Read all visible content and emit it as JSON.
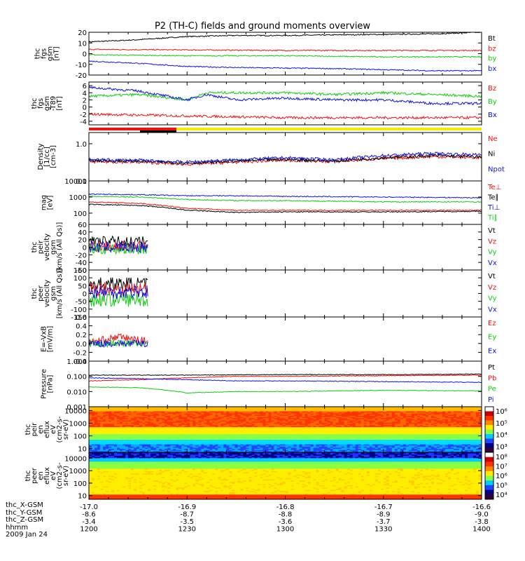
{
  "title": "P2 (TH-C) fields and ground moments overview",
  "colors": {
    "black": "#000000",
    "red": "#ee1111",
    "green": "#11cc11",
    "blue": "#1111dd",
    "orange": "#ff8800",
    "yellow": "#eeee00",
    "spec_bg": "#00ccff"
  },
  "chart_data": [
    {
      "type": "line",
      "id": "fgs",
      "ylabel": [
        "thc",
        "fgs",
        "gsm",
        "[nT]"
      ],
      "ylim": [
        -20,
        20
      ],
      "yticks": [
        20,
        10,
        0,
        -10,
        -20
      ],
      "series": [
        {
          "name": "Bt",
          "color": "black",
          "x": [
            -17.0,
            -16.95,
            -16.9,
            -16.85,
            -16.8,
            -16.75,
            -16.7,
            -16.65,
            -16.6
          ],
          "values": [
            11,
            13,
            16,
            17,
            17,
            17.5,
            18,
            18.5,
            20
          ]
        },
        {
          "name": "bz",
          "color": "red",
          "x": [
            -17.0,
            -16.9,
            -16.8,
            -16.7,
            -16.6
          ],
          "values": [
            4,
            3.5,
            3,
            3,
            3
          ]
        },
        {
          "name": "by",
          "color": "green",
          "x": [
            -17.0,
            -16.9,
            -16.8,
            -16.7,
            -16.6
          ],
          "values": [
            -1,
            -2,
            -2,
            -3,
            -3
          ]
        },
        {
          "name": "bx",
          "color": "blue",
          "x": [
            -17.0,
            -16.95,
            -16.9,
            -16.85,
            -16.8,
            -16.75,
            -16.7,
            -16.65,
            -16.6
          ],
          "values": [
            -7,
            -9,
            -12,
            -13,
            -13.5,
            -14,
            -15,
            -16,
            -16
          ]
        }
      ]
    },
    {
      "type": "line",
      "id": "t89",
      "ylabel": [
        "thc",
        "fgs",
        "gsm",
        "-T89",
        "[nT]"
      ],
      "ylim": [
        -5,
        7
      ],
      "yticks": [
        6,
        4,
        2,
        0,
        -2,
        -4
      ],
      "series": [
        {
          "name": "Bz",
          "color": "red",
          "x": [
            -17.0,
            -16.9,
            -16.8,
            -16.7,
            -16.6
          ],
          "values": [
            -2,
            -2.5,
            -3,
            -3,
            -3
          ]
        },
        {
          "name": "By",
          "color": "green",
          "x": [
            -17.0,
            -16.95,
            -16.9,
            -16.88,
            -16.85,
            -16.8,
            -16.75,
            -16.7,
            -16.65,
            -16.6
          ],
          "values": [
            3,
            3.5,
            2,
            4,
            4,
            4,
            3.5,
            4,
            3.5,
            3
          ]
        },
        {
          "name": "Bx",
          "color": "blue",
          "x": [
            -17.0,
            -16.95,
            -16.9,
            -16.88,
            -16.85,
            -16.8,
            -16.75,
            -16.7,
            -16.65,
            -16.6
          ],
          "values": [
            5.5,
            4.5,
            2,
            3.5,
            2,
            2.5,
            2,
            2,
            1,
            1
          ]
        }
      ]
    },
    {
      "type": "line",
      "id": "density",
      "yscale": "log",
      "ylabel": [
        "Density",
        "[1/cc]",
        "[cm-3]"
      ],
      "ylim": [
        0.1,
        2
      ],
      "yticks": [
        1.0,
        0.1
      ],
      "ytick_labels": [
        "1.0",
        "0.1"
      ],
      "series": [
        {
          "name": "Ne",
          "color": "red",
          "x": [
            -17.0,
            -16.95,
            -16.9,
            -16.85,
            -16.8,
            -16.75,
            -16.7,
            -16.65,
            -16.6
          ],
          "values": [
            0.33,
            0.32,
            0.28,
            0.32,
            0.36,
            0.33,
            0.4,
            0.45,
            0.42
          ]
        },
        {
          "name": "Ni",
          "color": "black",
          "x": [
            -17.0,
            -16.95,
            -16.9,
            -16.85,
            -16.8,
            -16.75,
            -16.7,
            -16.65,
            -16.6
          ],
          "values": [
            0.35,
            0.34,
            0.3,
            0.34,
            0.38,
            0.34,
            0.42,
            0.48,
            0.44
          ]
        },
        {
          "name": "Npot",
          "color": "blue",
          "x": [
            -17.0,
            -16.95,
            -16.9,
            -16.85,
            -16.8,
            -16.75,
            -16.7,
            -16.65,
            -16.6
          ],
          "values": [
            0.37,
            0.36,
            0.32,
            0.37,
            0.42,
            0.37,
            0.48,
            0.55,
            0.5
          ]
        }
      ]
    },
    {
      "type": "line",
      "id": "temp",
      "yscale": "log",
      "ylabel": [
        "mag",
        "[eV]"
      ],
      "ylim": [
        20,
        10000
      ],
      "yticks": [
        10000,
        1000,
        100
      ],
      "ytick_labels": [
        "10000",
        "1000",
        "100"
      ],
      "series": [
        {
          "name": "Te⊥",
          "color": "red",
          "x": [
            -17.0,
            -16.95,
            -16.9,
            -16.85,
            -16.8,
            -16.7,
            -16.6
          ],
          "values": [
            500,
            400,
            200,
            150,
            150,
            150,
            150
          ]
        },
        {
          "name": "Te∥",
          "color": "black",
          "x": [
            -17.0,
            -16.95,
            -16.9,
            -16.85,
            -16.8,
            -16.7,
            -16.6
          ],
          "values": [
            350,
            300,
            150,
            110,
            120,
            120,
            130
          ]
        },
        {
          "name": "Ti⊥",
          "color": "blue",
          "x": [
            -17.0,
            -16.95,
            -16.9,
            -16.85,
            -16.8,
            -16.7,
            -16.6
          ],
          "values": [
            1500,
            1400,
            1200,
            1200,
            1100,
            1000,
            900
          ]
        },
        {
          "name": "Ti∥",
          "color": "green",
          "x": [
            -17.0,
            -16.95,
            -16.9,
            -16.85,
            -16.8,
            -16.7,
            -16.6
          ],
          "values": [
            1100,
            1000,
            700,
            600,
            600,
            500,
            500
          ]
        }
      ]
    },
    {
      "type": "line",
      "id": "peir",
      "ylabel": [
        "thc",
        "peir",
        "velocity",
        "gsm",
        "[km/s (All Qs)]"
      ],
      "ylim": [
        -60,
        60
      ],
      "yticks": [
        60,
        40,
        20,
        0,
        -20,
        -40,
        -60
      ],
      "series": [
        {
          "name": "Vt",
          "color": "black",
          "x": [
            -17.0,
            -16.94
          ],
          "values": [
            15,
            15
          ]
        },
        {
          "name": "Vz",
          "color": "red",
          "x": [
            -17.0,
            -16.94
          ],
          "values": [
            2,
            2
          ]
        },
        {
          "name": "Vy",
          "color": "green",
          "x": [
            -17.0,
            -16.94
          ],
          "values": [
            -5,
            -5
          ]
        },
        {
          "name": "Vx",
          "color": "blue",
          "x": [
            -17.0,
            -16.94
          ],
          "values": [
            0,
            0
          ]
        }
      ]
    },
    {
      "type": "line",
      "id": "peer",
      "ylabel": [
        "thc",
        "peer",
        "velocity",
        "gsm",
        "[km/s (All Qs)]"
      ],
      "ylim": [
        -150,
        150
      ],
      "yticks": [
        150,
        100,
        50,
        0,
        -50,
        -100,
        -150
      ],
      "series": [
        {
          "name": "Vt",
          "color": "black",
          "x": [
            -17.0,
            -16.94
          ],
          "values": [
            60,
            60
          ]
        },
        {
          "name": "Vz",
          "color": "red",
          "x": [
            -17.0,
            -16.94
          ],
          "values": [
            30,
            30
          ]
        },
        {
          "name": "Vy",
          "color": "green",
          "x": [
            -17.0,
            -16.94
          ],
          "values": [
            -40,
            -40
          ]
        },
        {
          "name": "Vx",
          "color": "blue",
          "x": [
            -17.0,
            -16.94
          ],
          "values": [
            10,
            10
          ]
        }
      ]
    },
    {
      "type": "line",
      "id": "efield",
      "ylabel": [
        "E=-VxB",
        "[mV/m]"
      ],
      "ylim": [
        -0.4,
        0.6
      ],
      "yticks": [
        0.6,
        0.4,
        0.2,
        0.0,
        -0.2,
        -0.4
      ],
      "ytick_labels": [
        "0.6",
        "0.4",
        "0.2",
        "0.0",
        "-0.2",
        "-0.4"
      ],
      "series": [
        {
          "name": "Ez",
          "color": "red",
          "x": [
            -17.0,
            -16.97,
            -16.94
          ],
          "values": [
            0.02,
            0.15,
            0.05
          ]
        },
        {
          "name": "Ey",
          "color": "green",
          "x": [
            -17.0,
            -16.94
          ],
          "values": [
            0.0,
            0.0
          ]
        },
        {
          "name": "Ex",
          "color": "blue",
          "x": [
            -17.0,
            -16.94
          ],
          "values": [
            0.0,
            0.0
          ]
        }
      ]
    },
    {
      "type": "line",
      "id": "pressure",
      "yscale": "log",
      "ylabel": [
        "Pressure",
        "[nPa]"
      ],
      "ylim": [
        0.001,
        1.0
      ],
      "yticks": [
        1.0,
        0.1,
        0.01,
        0.001
      ],
      "ytick_labels": [
        "1.000",
        "0.100",
        "0.010",
        "0.001"
      ],
      "series": [
        {
          "name": "Pt",
          "color": "black",
          "x": [
            -17.0,
            -16.9,
            -16.8,
            -16.7,
            -16.6
          ],
          "values": [
            0.12,
            0.12,
            0.13,
            0.13,
            0.14
          ]
        },
        {
          "name": "Pb",
          "color": "red",
          "x": [
            -17.0,
            -16.95,
            -16.9,
            -16.85,
            -16.8,
            -16.7,
            -16.6
          ],
          "values": [
            0.05,
            0.06,
            0.08,
            0.1,
            0.1,
            0.11,
            0.12
          ]
        },
        {
          "name": "Pe",
          "color": "green",
          "x": [
            -17.0,
            -16.95,
            -16.9,
            -16.85,
            -16.8,
            -16.7,
            -16.6
          ],
          "values": [
            0.02,
            0.018,
            0.008,
            0.01,
            0.01,
            0.012,
            0.011
          ]
        },
        {
          "name": "Pi",
          "color": "blue",
          "x": [
            -17.0,
            -16.95,
            -16.9,
            -16.85,
            -16.8,
            -16.7,
            -16.6
          ],
          "values": [
            0.08,
            0.07,
            0.06,
            0.05,
            0.05,
            0.045,
            0.04
          ]
        }
      ]
    },
    {
      "type": "heatmap",
      "id": "peir_spec",
      "ylabel": [
        "thc",
        "peir",
        "en",
        "eflux",
        "eV",
        "(cm2-s-",
        "sr-eV)"
      ],
      "yscale": "log",
      "ylim": [
        5,
        20000
      ],
      "yticks": [
        10000,
        1000,
        100,
        10
      ],
      "ytick_labels": [
        "10000",
        "1000",
        "100",
        "10"
      ],
      "colorbar_ticks": [
        "10⁶",
        "10⁵",
        "10⁴",
        "10³"
      ]
    },
    {
      "type": "heatmap",
      "id": "peer_spec",
      "ylabel": [
        "thc",
        "peer",
        "en",
        "eflux",
        "eV",
        "(cm2-s-",
        "sr-eV)"
      ],
      "yscale": "log",
      "ylim": [
        5,
        30000
      ],
      "yticks": [
        10000,
        1000,
        100,
        10
      ],
      "ytick_labels": [
        "10000",
        "1000",
        "100",
        "10"
      ],
      "colorbar_ticks": [
        "10⁸",
        "10⁷",
        "10⁶",
        "10⁵",
        "10⁴"
      ]
    }
  ],
  "x_axis": {
    "ticks": [
      -17.0,
      -16.9,
      -16.8,
      -16.7,
      -16.6
    ],
    "rows": [
      {
        "name": "thc_X-GSM",
        "values": [
          "-17.0",
          "-16.9",
          "-16.8",
          "-16.7",
          "-16.6"
        ]
      },
      {
        "name": "thc_Y-GSM",
        "values": [
          "-8.6",
          "-8.7",
          "-8.8",
          "-8.9",
          "-9.0"
        ]
      },
      {
        "name": "thc_Z-GSM",
        "values": [
          "-3.4",
          "-3.5",
          "-3.6",
          "-3.7",
          "-3.8"
        ]
      },
      {
        "name": "hhmm",
        "values": [
          "1200",
          "1230",
          "1300",
          "1330",
          "1400"
        ]
      }
    ],
    "date": "2009 Jan 24"
  }
}
